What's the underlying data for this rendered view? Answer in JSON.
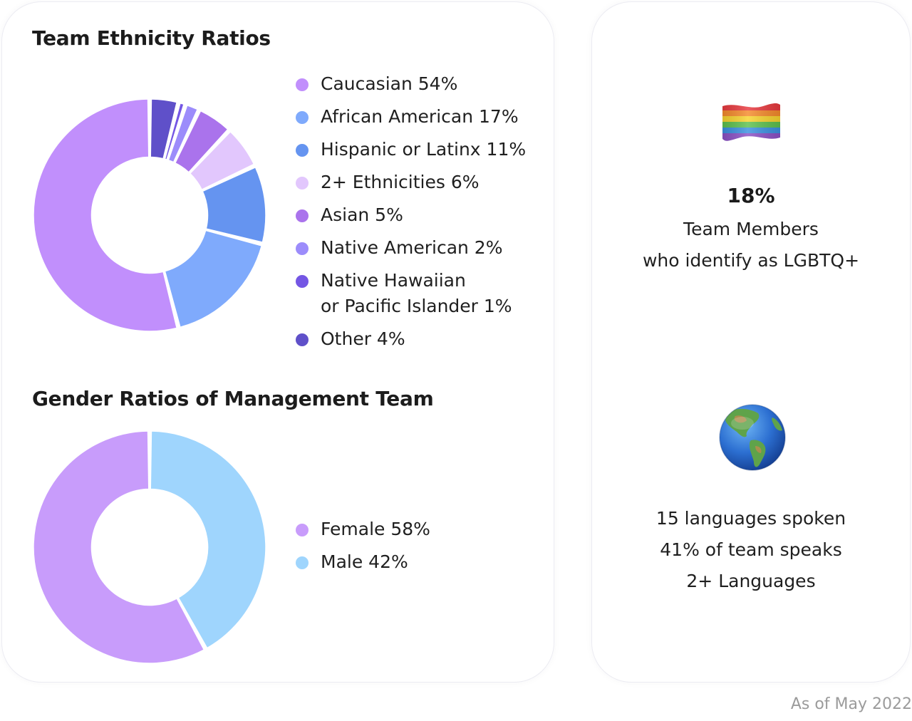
{
  "colors": {
    "caucasian": "#c18ffc",
    "african_american": "#7faafc",
    "hispanic": "#6594f0",
    "two_plus": "#e2c7fd",
    "asian": "#aa73ec",
    "native_american": "#9c8cfb",
    "pacific_islander": "#7456e4",
    "other": "#5f50c9",
    "female": "#c89cfb",
    "male": "#9fd5fd"
  },
  "chart_data": [
    {
      "type": "pie",
      "title": "Team Ethnicity Ratios",
      "hole": 0.5,
      "categories": [
        "Other",
        "Native Hawaiian or Pacific Islander",
        "Native American",
        "Asian",
        "2+ Ethnicities",
        "Hispanic or Latinx",
        "African American",
        "Caucasian"
      ],
      "values": [
        4,
        1,
        2,
        5,
        6,
        11,
        17,
        54
      ],
      "colors": [
        "#5f50c9",
        "#7456e4",
        "#9c8cfb",
        "#aa73ec",
        "#e2c7fd",
        "#6594f0",
        "#7faafc",
        "#c18ffc"
      ],
      "legend": [
        {
          "label": "Caucasian 54%",
          "color": "#c18ffc"
        },
        {
          "label": "African American 17%",
          "color": "#7faafc"
        },
        {
          "label": "Hispanic or Latinx 11%",
          "color": "#6594f0"
        },
        {
          "label": "2+ Ethnicities 6%",
          "color": "#e2c7fd"
        },
        {
          "label": "Asian 5%",
          "color": "#aa73ec"
        },
        {
          "label": "Native American 2%",
          "color": "#9c8cfb"
        },
        {
          "label": "Native Hawaiian\nor Pacific Islander 1%",
          "color": "#7456e4"
        },
        {
          "label": "Other 4%",
          "color": "#5f50c9"
        }
      ]
    },
    {
      "type": "pie",
      "title": "Gender Ratios of Management Team",
      "hole": 0.5,
      "categories": [
        "Male",
        "Female"
      ],
      "values": [
        42,
        58
      ],
      "colors": [
        "#9fd5fd",
        "#c89cfb"
      ],
      "legend": [
        {
          "label": "Female 58%",
          "color": "#c89cfb"
        },
        {
          "label": "Male 42%",
          "color": "#9fd5fd"
        }
      ]
    }
  ],
  "stats": {
    "lgbtq": {
      "icon": "rainbow-flag-icon",
      "percent": "18%",
      "line1": "Team Members",
      "line2": "who identify as LGBTQ+"
    },
    "languages": {
      "icon": "globe-icon",
      "line1": "15 languages spoken",
      "line2": "41% of team speaks",
      "line3": "2+ Languages"
    }
  },
  "footer": {
    "as_of": "As of May 2022"
  }
}
